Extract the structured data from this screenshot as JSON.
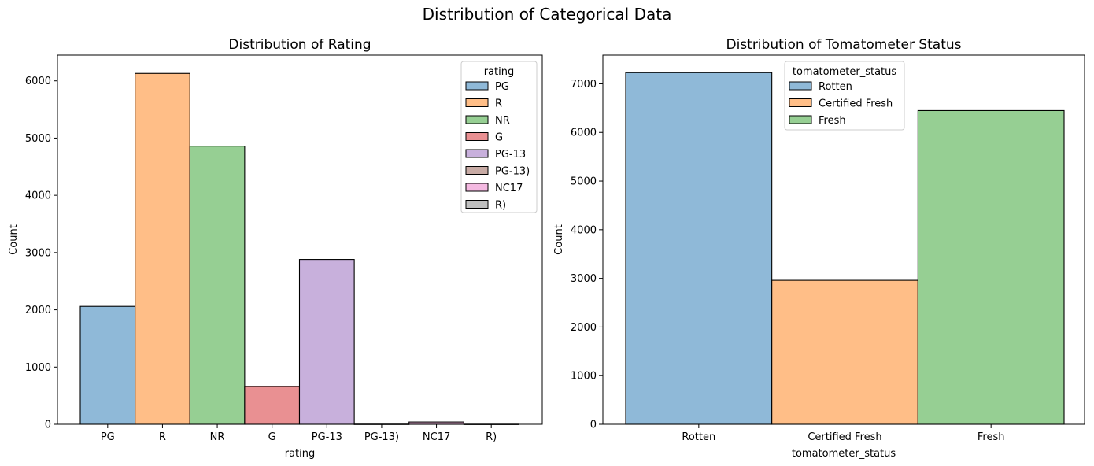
{
  "suptitle": "Distribution of Categorical Data",
  "colors": {
    "blue": "#8fb9d8",
    "orange": "#ffbe87",
    "green": "#96cf93",
    "red": "#e99092",
    "purple": "#c8b0dc",
    "brown": "#c8aba5",
    "pink": "#f4b9e1",
    "gray": "#bfbfbf",
    "edge": "#000000"
  },
  "chart_data": [
    {
      "type": "bar",
      "title": "Distribution of Rating",
      "xlabel": "rating",
      "ylabel": "Count",
      "ylim": [
        0,
        6450
      ],
      "yticks": [
        0,
        1000,
        2000,
        3000,
        4000,
        5000,
        6000
      ],
      "categories": [
        "PG",
        "R",
        "NR",
        "G",
        "PG-13",
        "PG-13)",
        "NC17",
        "R)"
      ],
      "values": [
        2060,
        6130,
        4860,
        660,
        2880,
        3,
        40,
        2
      ],
      "bar_colors": [
        "#8fb9d8",
        "#ffbe87",
        "#96cf93",
        "#e99092",
        "#c8b0dc",
        "#c8aba5",
        "#f4b9e1",
        "#bfbfbf"
      ],
      "legend": {
        "title": "rating",
        "position": "top-right",
        "entries": [
          "PG",
          "R",
          "NR",
          "G",
          "PG-13",
          "PG-13)",
          "NC17",
          "R)"
        ]
      },
      "grid": false
    },
    {
      "type": "bar",
      "title": "Distribution of Tomatometer Status",
      "xlabel": "tomatometer_status",
      "ylabel": "Count",
      "ylim": [
        0,
        7590
      ],
      "yticks": [
        0,
        1000,
        2000,
        3000,
        4000,
        5000,
        6000,
        7000
      ],
      "categories": [
        "Rotten",
        "Certified Fresh",
        "Fresh"
      ],
      "values": [
        7230,
        2960,
        6450
      ],
      "bar_colors": [
        "#8fb9d8",
        "#ffbe87",
        "#96cf93"
      ],
      "legend": {
        "title": "tomatometer_status",
        "position": "top-left",
        "entries": [
          "Rotten",
          "Certified Fresh",
          "Fresh"
        ]
      },
      "grid": false
    }
  ]
}
